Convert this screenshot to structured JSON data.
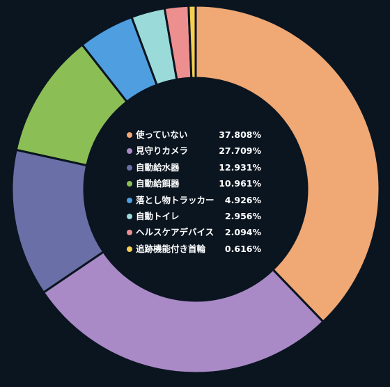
{
  "chart_data": {
    "type": "pie",
    "style": "donut",
    "legend_position": "center",
    "background": "#0b1520",
    "slices": [
      {
        "label": "使っていない",
        "value": 37.808,
        "display": "37.808%",
        "color": "#f0a874"
      },
      {
        "label": "見守りカメラ",
        "value": 27.709,
        "display": "27.709%",
        "color": "#a98ac6"
      },
      {
        "label": "自動給水器",
        "value": 12.931,
        "display": "12.931%",
        "color": "#6b6fa8"
      },
      {
        "label": "自動給餌器",
        "value": 10.961,
        "display": "10.961%",
        "color": "#8bbf56"
      },
      {
        "label": "落とし物トラッカー",
        "value": 4.926,
        "display": "4.926%",
        "color": "#4f9ee0"
      },
      {
        "label": "自動トイレ",
        "value": 2.956,
        "display": "2.956%",
        "color": "#9adbd9"
      },
      {
        "label": "ヘルスケアデバイス",
        "value": 2.094,
        "display": "2.094%",
        "color": "#ee8f8f"
      },
      {
        "label": "追跡機能付き首輪",
        "value": 0.616,
        "display": "0.616%",
        "color": "#f5cf4e"
      }
    ]
  }
}
